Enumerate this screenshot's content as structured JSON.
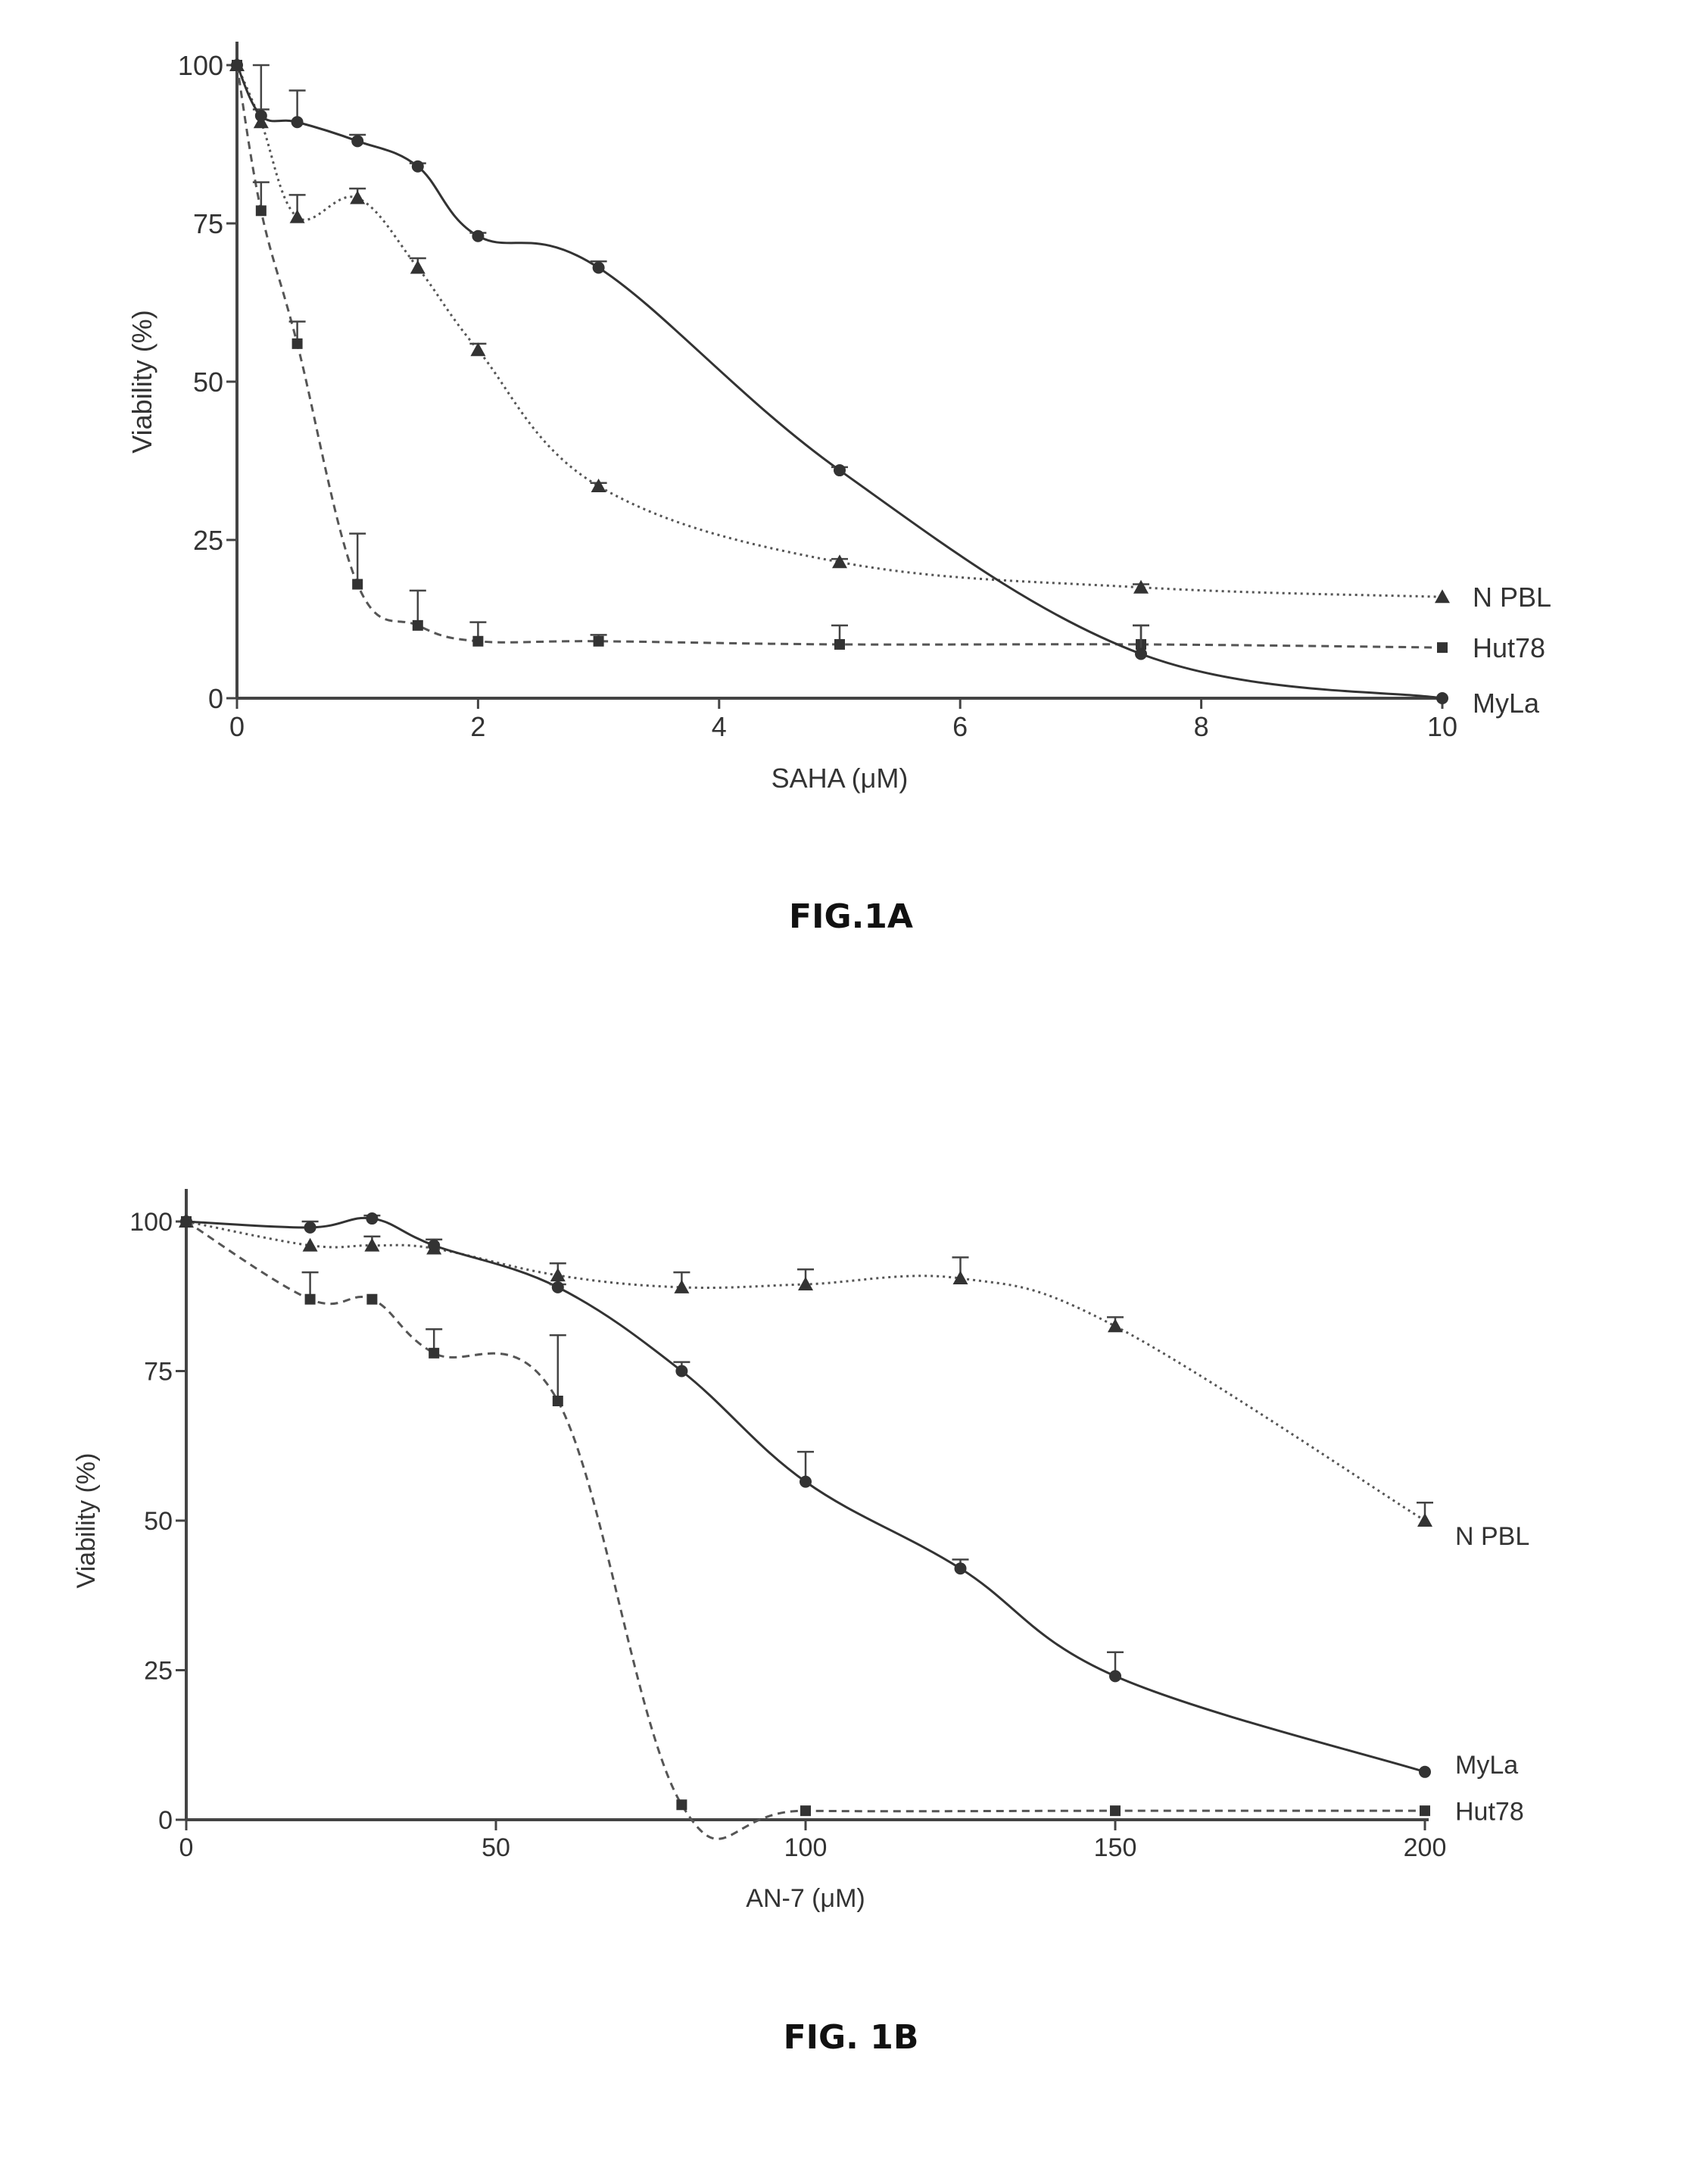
{
  "figures": [
    {
      "caption": "FIG.1A"
    },
    {
      "caption": "FIG. 1B"
    }
  ],
  "chart_data": [
    {
      "type": "line",
      "xlabel": "SAHA (μM)",
      "ylabel": "Viability (%)",
      "xlim": [
        0,
        10
      ],
      "ylim": [
        0,
        100
      ],
      "xticks": [
        0,
        2,
        4,
        6,
        8,
        10
      ],
      "yticks": [
        0,
        25,
        50,
        75,
        100
      ],
      "grid": false,
      "legend": "right, labels at line ends",
      "series": [
        {
          "name": "N PBL",
          "marker": "triangle",
          "dash": "dotted",
          "x": [
            0,
            0.2,
            0.5,
            1,
            1.5,
            2,
            3,
            5,
            7.5,
            10
          ],
          "y": [
            100,
            91,
            76,
            79,
            68,
            55,
            33.5,
            21.5,
            17.5,
            16
          ],
          "err": [
            0,
            2,
            3.5,
            1.5,
            1.5,
            1,
            0.5,
            0.5,
            0.5,
            0
          ]
        },
        {
          "name": "Hut78",
          "marker": "square",
          "dash": "dashed",
          "x": [
            0,
            0.2,
            0.5,
            1,
            1.5,
            2,
            3,
            5,
            7.5,
            10
          ],
          "y": [
            100,
            77,
            56,
            18,
            11.5,
            9,
            9,
            8.5,
            8.5,
            8
          ],
          "err": [
            0,
            4.5,
            3.5,
            8,
            5.5,
            3,
            1,
            3,
            3,
            0
          ]
        },
        {
          "name": "MyLa",
          "marker": "circle",
          "dash": "solid",
          "x": [
            0,
            0.2,
            0.5,
            1,
            1.5,
            2,
            3,
            5,
            7.5,
            10
          ],
          "y": [
            100,
            92,
            91,
            88,
            84,
            73,
            68,
            36,
            7,
            0
          ],
          "err": [
            0,
            8,
            5,
            1,
            0.5,
            0.5,
            1,
            0.5,
            4.5,
            0
          ]
        }
      ]
    },
    {
      "type": "line",
      "xlabel": "AN-7 (μM)",
      "ylabel": "Viability (%)",
      "xlim": [
        0,
        200
      ],
      "ylim": [
        0,
        100
      ],
      "xticks": [
        0,
        50,
        100,
        150,
        200
      ],
      "yticks": [
        0,
        25,
        50,
        75,
        100
      ],
      "grid": false,
      "legend": "right, labels at line ends",
      "series": [
        {
          "name": "N PBL",
          "marker": "triangle",
          "dash": "dotted",
          "x": [
            0,
            20,
            30,
            40,
            60,
            80,
            100,
            125,
            150,
            200
          ],
          "y": [
            100,
            96,
            96,
            95.5,
            91,
            89,
            89.5,
            90.5,
            82.5,
            50
          ],
          "err": [
            0,
            0,
            1.5,
            0,
            2,
            2.5,
            2.5,
            3.5,
            1.5,
            3
          ]
        },
        {
          "name": "MyLa",
          "marker": "circle",
          "dash": "solid",
          "x": [
            0,
            20,
            30,
            40,
            60,
            80,
            100,
            125,
            150,
            200
          ],
          "y": [
            100,
            99,
            100.5,
            96,
            89,
            75,
            56.5,
            42,
            24,
            8
          ],
          "err": [
            0,
            1,
            0.5,
            1,
            0.5,
            1.5,
            5,
            1.5,
            4,
            0
          ]
        },
        {
          "name": "Hut78",
          "marker": "square",
          "dash": "dashed",
          "x": [
            0,
            20,
            30,
            40,
            60,
            80,
            100,
            150,
            200
          ],
          "y": [
            100,
            87,
            87,
            78,
            70,
            2.5,
            1.5,
            1.5,
            1.5
          ],
          "err": [
            0,
            4.5,
            0,
            4,
            11,
            0,
            0,
            0,
            0
          ]
        }
      ]
    }
  ]
}
